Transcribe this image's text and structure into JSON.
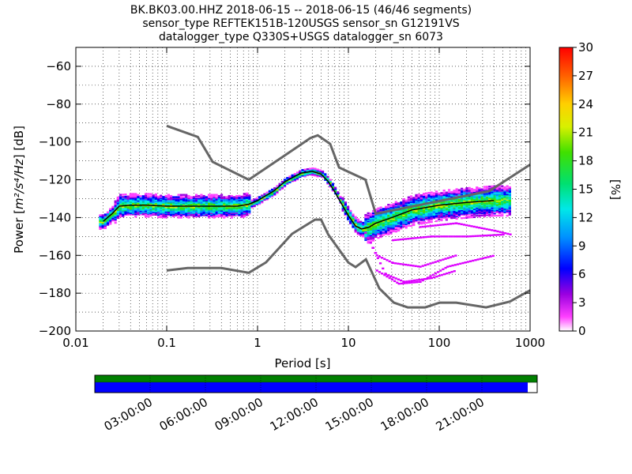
{
  "chart_data": {
    "type": "heatmap",
    "title_lines": [
      "BK.BK03.00.HHZ   2018-06-15 -- 2018-06-15  (46/46 segments)",
      "sensor_type REFTEK151B-120USGS sensor_sn G12191VS",
      "datalogger_type Q330S+USGS datalogger_sn 6073"
    ],
    "xlabel": "Period [s]",
    "ylabel_text": "Power [",
    "ylabel_units": "m²/s⁴/Hz",
    "ylabel_suffix": "] [dB]",
    "x_scale": "log",
    "xlim": [
      0.01,
      1000
    ],
    "ylim": [
      -200,
      -50
    ],
    "x_ticks": [
      0.01,
      0.1,
      1,
      10,
      100,
      1000
    ],
    "x_tick_labels": [
      "0.01",
      "0.1",
      "1",
      "10",
      "100",
      "1000"
    ],
    "y_ticks": [
      -200,
      -180,
      -160,
      -140,
      -120,
      -100,
      -80,
      -60
    ],
    "y_tick_labels": [
      "−200",
      "−180",
      "−160",
      "−140",
      "−120",
      "−100",
      "−80",
      "−60"
    ],
    "grid": "dotted",
    "colorbar": {
      "label": "[%]",
      "range": [
        0,
        30
      ],
      "ticks": [
        0,
        3,
        6,
        9,
        12,
        15,
        18,
        21,
        24,
        27,
        30
      ],
      "tick_labels": [
        "0",
        "3",
        "6",
        "9",
        "12",
        "15",
        "18",
        "21",
        "24",
        "27",
        "30"
      ]
    },
    "series": [
      {
        "name": "NHNM",
        "x": [
          0.1,
          0.22,
          0.32,
          0.8,
          3.8,
          4.6,
          6.3,
          7.9,
          15.4,
          20,
          354.8,
          1000
        ],
        "y": [
          -91.5,
          -97.4,
          -110.5,
          -120.0,
          -98.0,
          -96.5,
          -101.0,
          -113.5,
          -120.0,
          -138.0,
          -126.0,
          -112.0
        ]
      },
      {
        "name": "NLNM",
        "x": [
          0.1,
          0.17,
          0.4,
          0.8,
          1.24,
          2.4,
          4.3,
          5.0,
          6.0,
          10.0,
          12.0,
          15.6,
          21.9,
          31.6,
          45,
          70,
          101,
          154,
          328,
          600,
          1000
        ],
        "y": [
          -168.0,
          -166.7,
          -166.7,
          -169.2,
          -163.7,
          -148.6,
          -141.1,
          -141.1,
          -149.0,
          -163.8,
          -166.2,
          -162.1,
          -177.5,
          -185.0,
          -187.5,
          -187.5,
          -185.0,
          -185.0,
          -187.5,
          -184.4,
          -178.5
        ]
      },
      {
        "name": "mean",
        "x": [
          0.02,
          0.025,
          0.03,
          0.04,
          0.06,
          0.1,
          0.2,
          0.4,
          0.6,
          0.8,
          1.0,
          1.5,
          2.0,
          3.0,
          4.0,
          5.0,
          6.0,
          7.0,
          8.0,
          10,
          12,
          14,
          17,
          20,
          30,
          50,
          100,
          200,
          400
        ],
        "y": [
          -142,
          -138,
          -134,
          -133.5,
          -133.5,
          -134,
          -134,
          -134,
          -134,
          -133,
          -131,
          -126,
          -121,
          -116.5,
          -115.5,
          -117,
          -121,
          -126,
          -131,
          -139,
          -144.5,
          -146,
          -145,
          -143,
          -140,
          -136,
          -133.5,
          -132,
          -131
        ]
      }
    ],
    "gaps_bar_colors": {
      "top": "#008000",
      "bottom": "#0000ff"
    },
    "time_ticks": [
      "03:00:00",
      "06:00:00",
      "09:00:00",
      "12:00:00",
      "15:00:00",
      "18:00:00",
      "21:00:00"
    ]
  },
  "colors": {
    "noise_model": "#666666",
    "mean_line": "#000000",
    "grid": "#000000"
  }
}
